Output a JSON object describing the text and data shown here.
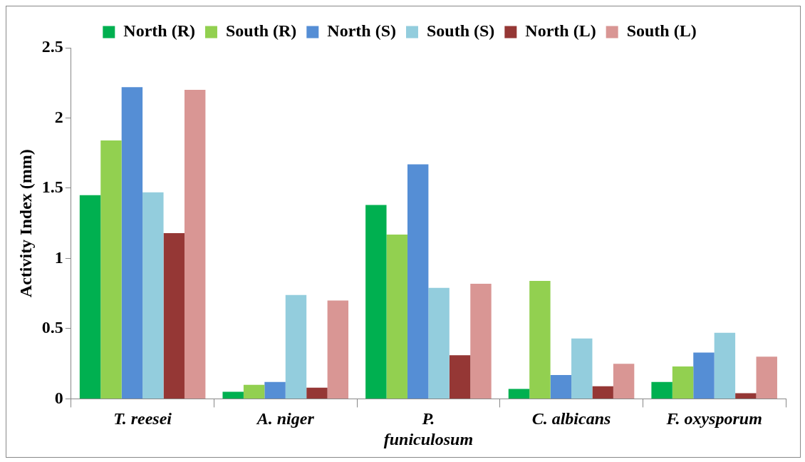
{
  "chart_data": {
    "type": "bar",
    "ylabel": "Activity Index (mm)",
    "categories": [
      "T. reesei",
      "A. niger",
      "P. funiculosum",
      "C. albicans",
      "F. oxysporum"
    ],
    "series": [
      {
        "name": "North (R)",
        "color": "#00b050",
        "values": [
          1.45,
          0.05,
          1.38,
          0.07,
          0.12
        ]
      },
      {
        "name": "South (R)",
        "color": "#92d050",
        "values": [
          1.84,
          0.1,
          1.17,
          0.84,
          0.23
        ]
      },
      {
        "name": "North (S)",
        "color": "#558ed5",
        "values": [
          2.22,
          0.12,
          1.67,
          0.17,
          0.33
        ]
      },
      {
        "name": "South (S)",
        "color": "#93cddd",
        "values": [
          1.47,
          0.74,
          0.79,
          0.43,
          0.47
        ]
      },
      {
        "name": "North (L)",
        "color": "#953735",
        "values": [
          1.18,
          0.08,
          0.31,
          0.09,
          0.04
        ]
      },
      {
        "name": "South (L)",
        "color": "#d99694",
        "values": [
          2.2,
          0.7,
          0.82,
          0.25,
          0.3
        ]
      }
    ],
    "ylim": [
      0,
      2.5
    ],
    "yticks": [
      0,
      0.5,
      1,
      1.5,
      2,
      2.5
    ],
    "grid": false,
    "legend": "top"
  }
}
